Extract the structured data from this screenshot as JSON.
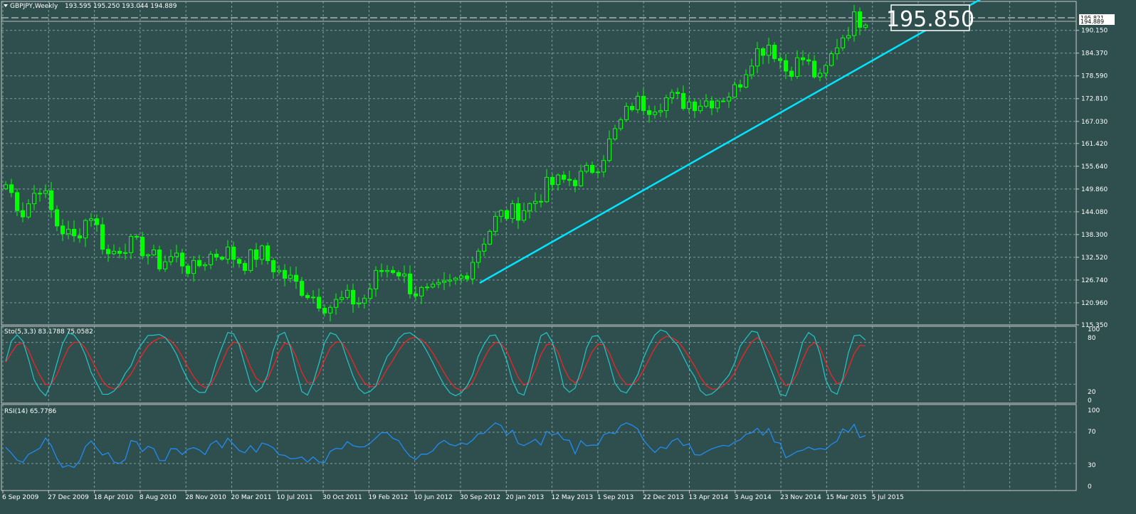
{
  "colors": {
    "background": "#2f4f4f",
    "frame": "#c8c8c8",
    "grid": "#7f9f9f",
    "bull": "#00ff00",
    "bear": "#00ff00",
    "trendline": "#00e5ff",
    "sto_main": "#20c8c8",
    "sto_signal": "#ff2020",
    "rsi": "#1e90ff",
    "text": "#ffffff"
  },
  "main_panel": {
    "title": "GBPJPY,Weekly",
    "ohlc": "193.595 195.250 193.044 194.889",
    "price_tag": "195.850",
    "last_price_label": "195.821",
    "ask_label": "194.889"
  },
  "stochastic_panel": {
    "label": "Sto(5,3,3) 83.1788 75.0582",
    "axis_labels": [
      "100",
      "80",
      "20",
      "0"
    ]
  },
  "rsi_panel": {
    "label": "RSI(14) 65.7786",
    "axis_labels": [
      "100",
      "70",
      "30",
      "0"
    ]
  },
  "chart_data": {
    "type": "candlestick",
    "symbol": "GBPJPY",
    "timeframe": "Weekly",
    "ylim": [
      115.35,
      197.5
    ],
    "y_ticks": [
      "190.150",
      "184.370",
      "178.590",
      "172.810",
      "167.030",
      "161.420",
      "155.640",
      "149.860",
      "144.080",
      "138.300",
      "132.520",
      "126.740",
      "120.960",
      "115.350"
    ],
    "x_ticks": [
      "6 Sep 2009",
      "27 Dec 2009",
      "18 Apr 2010",
      "8 Aug 2010",
      "28 Nov 2010",
      "20 Mar 2011",
      "10 Jul 2011",
      "30 Oct 2011",
      "19 Feb 2012",
      "10 Jun 2012",
      "30 Sep 2012",
      "20 Jan 2013",
      "12 May 2013",
      "1 Sep 2013",
      "22 Dec 2013",
      "13 Apr 2014",
      "3 Aug 2014",
      "23 Nov 2014",
      "15 Mar 2015",
      "5 Jul 2015"
    ],
    "price_path": [
      [
        0,
        151
      ],
      [
        8,
        144
      ],
      [
        16,
        151
      ],
      [
        24,
        141
      ],
      [
        32,
        137
      ],
      [
        40,
        144
      ],
      [
        48,
        133
      ],
      [
        56,
        136
      ],
      [
        64,
        135
      ],
      [
        72,
        131
      ],
      [
        80,
        133
      ],
      [
        88,
        129
      ],
      [
        96,
        133
      ],
      [
        104,
        134
      ],
      [
        112,
        131
      ],
      [
        120,
        134
      ],
      [
        128,
        129
      ],
      [
        136,
        126
      ],
      [
        144,
        123
      ],
      [
        152,
        120
      ],
      [
        160,
        122
      ],
      [
        168,
        121
      ],
      [
        176,
        129
      ],
      [
        184,
        130
      ],
      [
        192,
        124
      ],
      [
        200,
        123
      ],
      [
        208,
        125
      ],
      [
        216,
        128
      ],
      [
        224,
        136
      ],
      [
        232,
        143
      ],
      [
        240,
        144
      ],
      [
        248,
        146
      ],
      [
        256,
        151
      ],
      [
        264,
        152
      ],
      [
        272,
        153
      ],
      [
        280,
        157
      ],
      [
        288,
        165
      ],
      [
        296,
        172
      ],
      [
        304,
        171
      ],
      [
        312,
        173
      ],
      [
        320,
        172
      ],
      [
        328,
        172
      ],
      [
        336,
        173
      ],
      [
        344,
        175
      ],
      [
        352,
        184
      ],
      [
        360,
        187
      ],
      [
        368,
        180
      ],
      [
        376,
        183
      ],
      [
        384,
        177
      ],
      [
        392,
        187
      ],
      [
        400,
        193
      ],
      [
        404,
        193
      ],
      [
        408,
        195
      ]
    ],
    "trendline": {
      "start": [
        "30 Sep 2012",
        126.0
      ],
      "end": [
        "Jul 2015",
        193.5
      ],
      "extends": "right"
    },
    "stochastic": {
      "period": "5,3,3",
      "main": 83.1788,
      "signal": 75.0582,
      "levels": [
        80,
        20
      ]
    },
    "rsi": {
      "period": 14,
      "value": 65.7786,
      "levels": [
        70,
        30
      ]
    }
  }
}
